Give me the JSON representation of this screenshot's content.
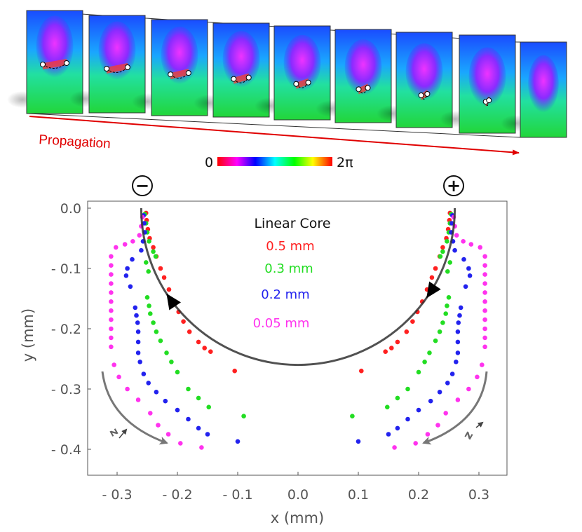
{
  "propagation_label": "Propagation",
  "colorbar": {
    "min_label": "0",
    "max_label": "2π"
  },
  "charges": {
    "left": "−",
    "right": "+"
  },
  "z_label": "z",
  "chart_data": {
    "type": "scatter",
    "title": "",
    "xlabel": "x (mm)",
    "ylabel": "y (mm)",
    "xlim": [
      -0.34,
      0.34
    ],
    "ylim": [
      -0.44,
      0.005
    ],
    "xticks": [
      -0.3,
      -0.2,
      -0.1,
      0.0,
      0.1,
      0.2,
      0.3
    ],
    "xtick_labels": [
      "- 0.3",
      "- 0.2",
      "- 0.1",
      "0.0",
      "0.1",
      "0.2",
      "0.3"
    ],
    "yticks": [
      0.0,
      -0.1,
      -0.2,
      -0.3,
      -0.4
    ],
    "ytick_labels": [
      "0.0",
      "- 0.1",
      "- 0.2",
      "- 0.3",
      "- 0.4"
    ],
    "legend": {
      "title": "Linear Core",
      "position": "top-center"
    },
    "reference_curve": {
      "label": "semicircle",
      "center": [
        0,
        0
      ],
      "radius": 0.26,
      "color": "#444444"
    },
    "series": [
      {
        "name": "0.5 mm",
        "color": "#ff2020",
        "points": [
          [
            -0.252,
            -0.008
          ],
          [
            -0.251,
            -0.02
          ],
          [
            -0.249,
            -0.035
          ],
          [
            -0.246,
            -0.05
          ],
          [
            -0.24,
            -0.065
          ],
          [
            -0.235,
            -0.08
          ],
          [
            -0.228,
            -0.1
          ],
          [
            -0.222,
            -0.115
          ],
          [
            -0.214,
            -0.135
          ],
          [
            -0.206,
            -0.155
          ],
          [
            -0.198,
            -0.172
          ],
          [
            -0.19,
            -0.188
          ],
          [
            -0.18,
            -0.205
          ],
          [
            -0.165,
            -0.222
          ],
          [
            -0.155,
            -0.232
          ],
          [
            -0.145,
            -0.238
          ],
          [
            -0.105,
            -0.27
          ]
        ]
      },
      {
        "name": "0.3 mm",
        "color": "#22dd22",
        "points": [
          [
            -0.254,
            -0.01
          ],
          [
            -0.252,
            -0.025
          ],
          [
            -0.25,
            -0.04
          ],
          [
            -0.247,
            -0.055
          ],
          [
            -0.24,
            -0.072
          ],
          [
            -0.236,
            -0.08
          ],
          [
            -0.252,
            -0.09
          ],
          [
            -0.248,
            -0.105
          ],
          [
            -0.25,
            -0.148
          ],
          [
            -0.247,
            -0.162
          ],
          [
            -0.245,
            -0.175
          ],
          [
            -0.24,
            -0.19
          ],
          [
            -0.235,
            -0.205
          ],
          [
            -0.228,
            -0.22
          ],
          [
            -0.218,
            -0.24
          ],
          [
            -0.21,
            -0.255
          ],
          [
            -0.2,
            -0.272
          ],
          [
            -0.182,
            -0.3
          ],
          [
            -0.165,
            -0.315
          ],
          [
            -0.148,
            -0.33
          ],
          [
            -0.09,
            -0.345
          ]
        ]
      },
      {
        "name": "0.2 mm",
        "color": "#2222ee",
        "points": [
          [
            -0.256,
            -0.012
          ],
          [
            -0.255,
            -0.025
          ],
          [
            -0.254,
            -0.04
          ],
          [
            -0.257,
            -0.055
          ],
          [
            -0.26,
            -0.07
          ],
          [
            -0.275,
            -0.085
          ],
          [
            -0.283,
            -0.1
          ],
          [
            -0.285,
            -0.112
          ],
          [
            -0.278,
            -0.13
          ],
          [
            -0.27,
            -0.165
          ],
          [
            -0.268,
            -0.178
          ],
          [
            -0.266,
            -0.19
          ],
          [
            -0.265,
            -0.205
          ],
          [
            -0.265,
            -0.222
          ],
          [
            -0.265,
            -0.24
          ],
          [
            -0.262,
            -0.255
          ],
          [
            -0.256,
            -0.275
          ],
          [
            -0.248,
            -0.29
          ],
          [
            -0.235,
            -0.305
          ],
          [
            -0.22,
            -0.32
          ],
          [
            -0.2,
            -0.335
          ],
          [
            -0.182,
            -0.35
          ],
          [
            -0.165,
            -0.365
          ],
          [
            -0.15,
            -0.375
          ],
          [
            -0.1,
            -0.387
          ]
        ]
      },
      {
        "name": "0.05 mm",
        "color": "#ff33ee",
        "points": [
          [
            -0.258,
            -0.015
          ],
          [
            -0.26,
            -0.03
          ],
          [
            -0.263,
            -0.045
          ],
          [
            -0.274,
            -0.055
          ],
          [
            -0.287,
            -0.06
          ],
          [
            -0.302,
            -0.065
          ],
          [
            -0.31,
            -0.08
          ],
          [
            -0.31,
            -0.095
          ],
          [
            -0.31,
            -0.11
          ],
          [
            -0.31,
            -0.125
          ],
          [
            -0.31,
            -0.14
          ],
          [
            -0.31,
            -0.155
          ],
          [
            -0.31,
            -0.17
          ],
          [
            -0.31,
            -0.185
          ],
          [
            -0.31,
            -0.2
          ],
          [
            -0.31,
            -0.215
          ],
          [
            -0.31,
            -0.23
          ],
          [
            -0.305,
            -0.26
          ],
          [
            -0.297,
            -0.28
          ],
          [
            -0.283,
            -0.3
          ],
          [
            -0.265,
            -0.318
          ],
          [
            -0.245,
            -0.34
          ],
          [
            -0.232,
            -0.36
          ],
          [
            -0.215,
            -0.375
          ],
          [
            -0.195,
            -0.39
          ],
          [
            -0.16,
            -0.397
          ]
        ]
      }
    ]
  }
}
